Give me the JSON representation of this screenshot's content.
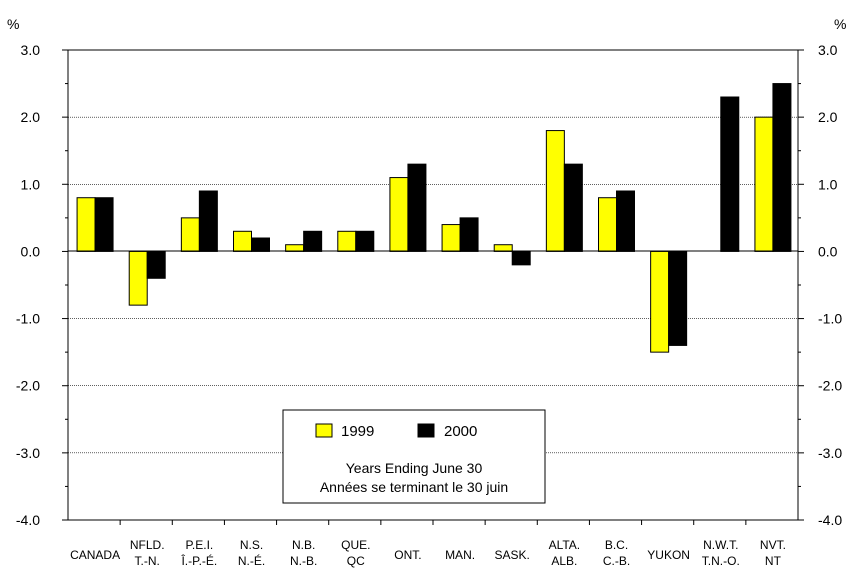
{
  "chart_data": {
    "type": "bar",
    "unit_left": "%",
    "unit_right": "%",
    "ylim": [
      -4.0,
      3.0
    ],
    "yticks": [
      "3.0",
      "2.0",
      "1.0",
      "0.0",
      "-1.0",
      "-2.0",
      "-3.0",
      "-4.0"
    ],
    "ytick_values": [
      3,
      2,
      1,
      0,
      -1,
      -2,
      -3,
      -4
    ],
    "grid": true,
    "categories": [
      {
        "line1": "CANADA",
        "line2": ""
      },
      {
        "line1": "NFLD.",
        "line2": "T.-N."
      },
      {
        "line1": "P.E.I.",
        "line2": "Î.-P.-É."
      },
      {
        "line1": "N.S.",
        "line2": "N.-É."
      },
      {
        "line1": "N.B.",
        "line2": "N.-B."
      },
      {
        "line1": "QUE.",
        "line2": "QC"
      },
      {
        "line1": "ONT.",
        "line2": ""
      },
      {
        "line1": "MAN.",
        "line2": ""
      },
      {
        "line1": "SASK.",
        "line2": ""
      },
      {
        "line1": "ALTA.",
        "line2": "ALB."
      },
      {
        "line1": "B.C.",
        "line2": "C.-B."
      },
      {
        "line1": "YUKON",
        "line2": ""
      },
      {
        "line1": "N.W.T.",
        "line2": "T.N.-O."
      },
      {
        "line1": "NVT.",
        "line2": "NT"
      }
    ],
    "series": [
      {
        "name": "1999",
        "color": "#ffff00",
        "values": [
          0.8,
          -0.8,
          0.5,
          0.3,
          0.1,
          0.3,
          1.1,
          0.4,
          0.1,
          1.8,
          0.8,
          -1.5,
          null,
          2.0
        ]
      },
      {
        "name": "2000",
        "color": "#000000",
        "values": [
          0.8,
          -0.4,
          0.9,
          0.2,
          0.3,
          0.3,
          1.3,
          0.5,
          -0.2,
          1.3,
          0.9,
          -1.4,
          2.3,
          2.5
        ]
      }
    ],
    "legend": {
      "placement": "bottom-center",
      "note_line1": "Years Ending June 30",
      "note_line2": "Années se terminant le 30 juin"
    }
  }
}
